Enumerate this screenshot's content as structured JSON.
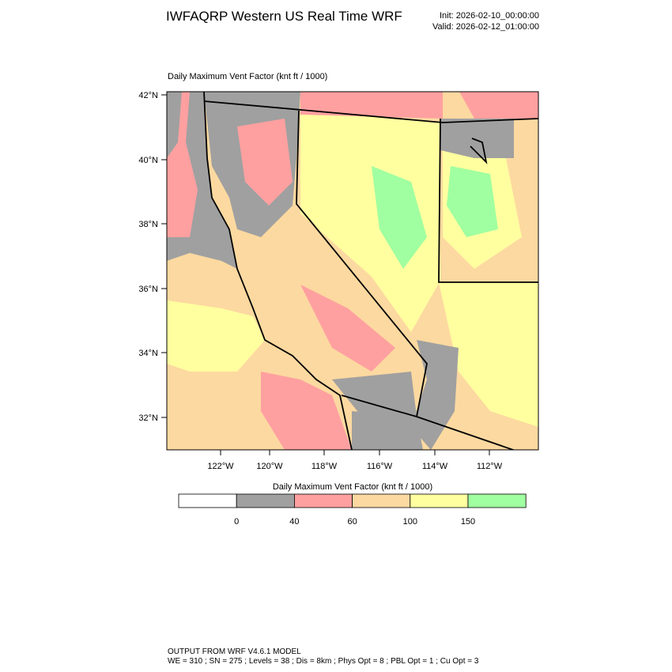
{
  "header": {
    "title": "IWFAQRP Western US Real Time WRF",
    "init": "Init: 2026-02-10_00:00:00",
    "valid": "Valid: 2026-02-12_01:00:00"
  },
  "map": {
    "title": "Daily Maximum Vent Factor   (knt ft / 1000)",
    "lat_labels": [
      "42°N",
      "40°N",
      "38°N",
      "36°N",
      "34°N",
      "32°N"
    ],
    "lon_labels": [
      "122°W",
      "120°W",
      "118°W",
      "116°W",
      "114°W",
      "112°W"
    ]
  },
  "colorbar": {
    "title": "Daily Maximum Vent Factor  (knt ft / 1000)",
    "colors": [
      "#ffffff",
      "#a0a0a0",
      "#ffa0a0",
      "#fcd9a0",
      "#ffffa0",
      "#a0ffa0"
    ],
    "levels": [
      0,
      40,
      60,
      100,
      150
    ]
  },
  "footer": {
    "lines": [
      "OUTPUT FROM WRF V4.6.1 MODEL",
      "WE = 310 ; SN = 275 ; Levels = 38 ; Dis = 8km ; Phys Opt = 8 ; PBL Opt = 1 ; Cu Opt = 3"
    ]
  }
}
